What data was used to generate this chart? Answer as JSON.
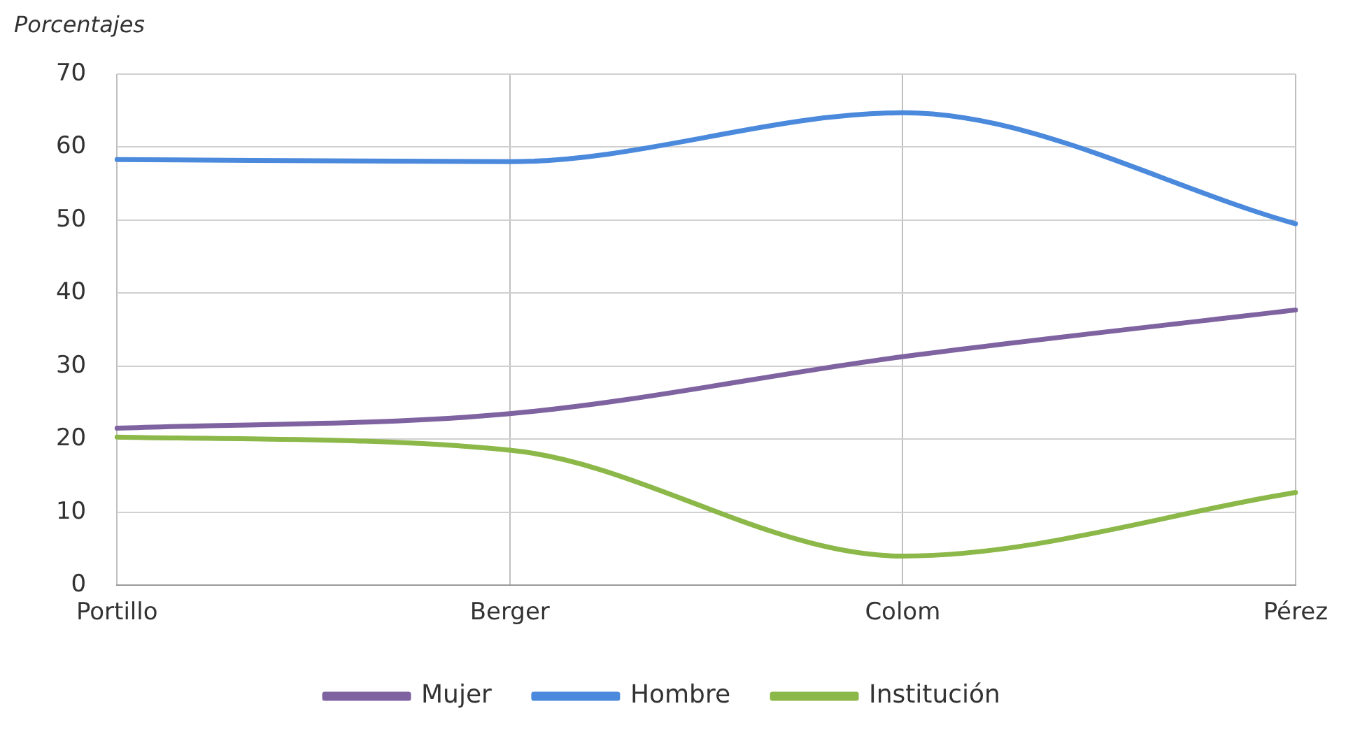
{
  "chart_data": {
    "type": "line",
    "ylabel": "Porcentajes",
    "categories": [
      "Portillo",
      "Berger",
      "Colom",
      "Pérez"
    ],
    "series": [
      {
        "name": "Mujer",
        "color": "#7f63a1",
        "values": [
          21.5,
          23.5,
          31.3,
          37.7
        ]
      },
      {
        "name": "Hombre",
        "color": "#4a89dc",
        "values": [
          58.3,
          58.0,
          64.7,
          49.5
        ]
      },
      {
        "name": "Institución",
        "color": "#8cb84a",
        "values": [
          20.3,
          18.5,
          4.0,
          12.7
        ]
      }
    ],
    "ylim": [
      0,
      70
    ],
    "yticks": [
      0,
      10,
      20,
      30,
      40,
      50,
      60,
      70
    ],
    "grid": true,
    "legend": "bottom",
    "marker": "none",
    "line_style": "solid"
  }
}
